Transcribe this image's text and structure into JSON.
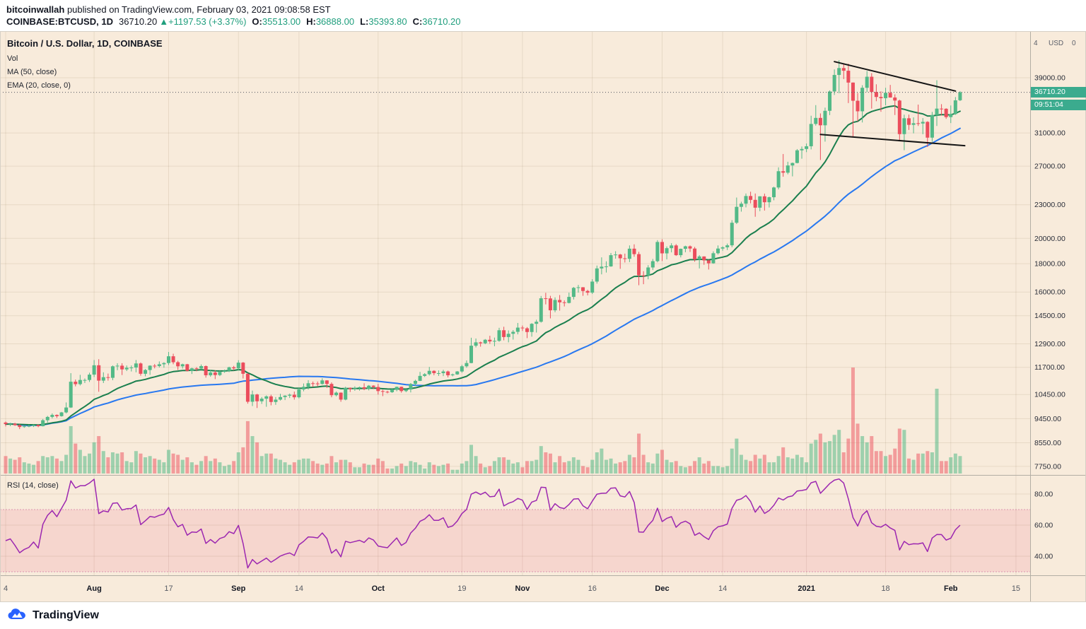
{
  "header": {
    "publisher": "bitcoinwallah",
    "published_text": " published on TradingView.com, February 03, 2021 09:08:58 EST",
    "symbol": "COINBASE:BTCUSD, 1D",
    "last": "36710.20",
    "arrow": "▲",
    "change": "+1197.53 (+3.37%)",
    "o_label": "O:",
    "open": "35513.00",
    "h_label": "H:",
    "high": "36888.00",
    "l_label": "L:",
    "low": "35393.80",
    "c_label": "C:",
    "close": "36710.20"
  },
  "legend": {
    "title": "Bitcoin / U.S. Dollar, 1D, COINBASE",
    "vol": "Vol",
    "ma": "MA (50, close)",
    "ema": "EMA (20, close, 0)",
    "rsi": "RSI (14, close)"
  },
  "price_axis": {
    "top_row": [
      "4",
      "USD",
      "0"
    ],
    "last_price_label": "36710.20",
    "countdown": "09:51:04"
  },
  "footer": {
    "brand": "TradingView"
  },
  "colors": {
    "bg": "#f8ebdb",
    "pos": "#1f9e7d",
    "up": "#53b987",
    "down": "#eb4d5c",
    "vol_up": "rgba(83,185,135,0.55)",
    "vol_down": "rgba(235,77,92,0.5)",
    "ema": "#1a7f4e",
    "ma": "#2878f0",
    "rsi": "#9c27b0",
    "rsi_band": "rgba(233,30,99,0.1)",
    "rsi_band_edge": "rgba(194,70,140,0.5)",
    "tag": "#3bab8e",
    "grid": "rgba(90,60,20,0.1)",
    "divider": "#b3aea4",
    "frame": "#d6d0c6",
    "trend": "#151515",
    "text_dark": "#131722",
    "text_soft": "#5a5e69"
  },
  "chart_data": {
    "type": "candlestick",
    "title": "Bitcoin / U.S. Dollar, 1D, COINBASE",
    "timeframe": "1D",
    "scale": "log",
    "indicators": [
      "Vol",
      "MA (50, close)",
      "EMA (20, close, 0)",
      "RSI (14, close)"
    ],
    "last_bar": {
      "open": 35513.0,
      "high": 36888.0,
      "low": 35393.8,
      "close": 36710.2,
      "change": "+1197.53 (+3.37%)"
    },
    "first_open": 9300,
    "price_ticks": [
      39000,
      31000,
      27000,
      23000,
      20000,
      18000,
      16000,
      14500,
      12900,
      11700,
      10450,
      9450,
      8550,
      7750
    ],
    "rsi_ticks": [
      80,
      60,
      40
    ],
    "rsi_band": [
      70,
      30
    ],
    "time_ticks": [
      {
        "label": "4",
        "day": 0,
        "bold": false
      },
      {
        "label": "Aug",
        "day": 19,
        "bold": true
      },
      {
        "label": "17",
        "day": 35,
        "bold": false
      },
      {
        "label": "Sep",
        "day": 50,
        "bold": true
      },
      {
        "label": "14",
        "day": 63,
        "bold": false
      },
      {
        "label": "Oct",
        "day": 80,
        "bold": true
      },
      {
        "label": "19",
        "day": 98,
        "bold": false
      },
      {
        "label": "Nov",
        "day": 111,
        "bold": true
      },
      {
        "label": "16",
        "day": 126,
        "bold": false
      },
      {
        "label": "Dec",
        "day": 141,
        "bold": true
      },
      {
        "label": "14",
        "day": 154,
        "bold": false
      },
      {
        "label": "2021",
        "day": 172,
        "bold": true
      },
      {
        "label": "18",
        "day": 189,
        "bold": false
      },
      {
        "label": "Feb",
        "day": 203,
        "bold": true
      },
      {
        "label": "15",
        "day": 217,
        "bold": false
      }
    ],
    "trendlines": [
      {
        "day1": 178,
        "price1": 41700,
        "day2": 204,
        "price2": 36900
      },
      {
        "day1": 175,
        "price1": 30800,
        "day2": 206,
        "price2": 29400
      }
    ],
    "candles_hlcv": [
      [
        9340,
        9150,
        9240,
        14
      ],
      [
        9290,
        9160,
        9255,
        12
      ],
      [
        9290,
        9170,
        9200,
        11
      ],
      [
        9230,
        9050,
        9130,
        13
      ],
      [
        9190,
        9100,
        9155,
        9
      ],
      [
        9220,
        9120,
        9170,
        8
      ],
      [
        9230,
        9130,
        9210,
        7
      ],
      [
        9220,
        9120,
        9160,
        10
      ],
      [
        9440,
        9150,
        9390,
        14
      ],
      [
        9560,
        9300,
        9520,
        13
      ],
      [
        9660,
        9460,
        9600,
        14
      ],
      [
        9620,
        9480,
        9550,
        12
      ],
      [
        9720,
        9530,
        9700,
        10
      ],
      [
        10110,
        9660,
        9900,
        15
      ],
      [
        11420,
        9880,
        11020,
        38
      ],
      [
        11120,
        10810,
        10910,
        24
      ],
      [
        11340,
        10850,
        11100,
        19
      ],
      [
        11170,
        10960,
        11100,
        14
      ],
      [
        11440,
        11010,
        11350,
        16
      ],
      [
        12060,
        11240,
        11800,
        25
      ],
      [
        12100,
        10570,
        11070,
        30
      ],
      [
        11460,
        10960,
        11230,
        18
      ],
      [
        11400,
        11070,
        11200,
        13
      ],
      [
        11790,
        11090,
        11750,
        17
      ],
      [
        11900,
        11560,
        11780,
        16
      ],
      [
        11900,
        11330,
        11600,
        17
      ],
      [
        11790,
        11520,
        11680,
        10
      ],
      [
        11790,
        11500,
        11690,
        9
      ],
      [
        12060,
        11460,
        11890,
        18
      ],
      [
        11940,
        11300,
        11390,
        16
      ],
      [
        11620,
        11270,
        11570,
        13
      ],
      [
        11800,
        11340,
        11780,
        14
      ],
      [
        11860,
        11650,
        11760,
        12
      ],
      [
        11990,
        11690,
        11850,
        11
      ],
      [
        11950,
        11680,
        11910,
        9
      ],
      [
        12470,
        11810,
        12250,
        19
      ],
      [
        12380,
        11850,
        11950,
        16
      ],
      [
        12020,
        11570,
        11750,
        15
      ],
      [
        11880,
        11640,
        11850,
        11
      ],
      [
        11870,
        11500,
        11530,
        13
      ],
      [
        11680,
        11380,
        11650,
        9
      ],
      [
        11710,
        11510,
        11640,
        7
      ],
      [
        11840,
        11590,
        11760,
        10
      ],
      [
        11790,
        11210,
        11320,
        14
      ],
      [
        11570,
        11250,
        11450,
        10
      ],
      [
        11560,
        11140,
        11330,
        12
      ],
      [
        11540,
        11280,
        11480,
        9
      ],
      [
        11590,
        11440,
        11530,
        6
      ],
      [
        11730,
        11470,
        11700,
        7
      ],
      [
        11770,
        11550,
        11650,
        10
      ],
      [
        12050,
        11540,
        11930,
        17
      ],
      [
        11960,
        11170,
        11390,
        21
      ],
      [
        11430,
        10060,
        10140,
        42
      ],
      [
        10620,
        9960,
        10450,
        30
      ],
      [
        10480,
        9880,
        10160,
        25
      ],
      [
        10340,
        10050,
        10270,
        14
      ],
      [
        10410,
        9930,
        10370,
        16
      ],
      [
        10440,
        9990,
        10130,
        16
      ],
      [
        10340,
        10010,
        10230,
        12
      ],
      [
        10480,
        10190,
        10340,
        11
      ],
      [
        10420,
        10210,
        10400,
        9
      ],
      [
        10490,
        10300,
        10440,
        7
      ],
      [
        10580,
        10230,
        10330,
        9
      ],
      [
        10740,
        10280,
        10670,
        11
      ],
      [
        10940,
        10590,
        10790,
        12
      ],
      [
        11090,
        10670,
        10950,
        12
      ],
      [
        11030,
        10780,
        10940,
        10
      ],
      [
        11030,
        10810,
        10920,
        8
      ],
      [
        11180,
        10890,
        11080,
        7
      ],
      [
        11090,
        10740,
        10920,
        8
      ],
      [
        10990,
        10330,
        10420,
        14
      ],
      [
        10580,
        10370,
        10530,
        9
      ],
      [
        10540,
        10140,
        10230,
        11
      ],
      [
        10790,
        10200,
        10740,
        11
      ],
      [
        10760,
        10560,
        10690,
        9
      ],
      [
        10810,
        10610,
        10730,
        5
      ],
      [
        10800,
        10620,
        10770,
        5
      ],
      [
        10950,
        10640,
        10700,
        8
      ],
      [
        10870,
        10630,
        10840,
        7
      ],
      [
        10860,
        10690,
        10780,
        7
      ],
      [
        10920,
        10450,
        10600,
        12
      ],
      [
        10660,
        10380,
        10570,
        10
      ],
      [
        10610,
        10500,
        10550,
        4
      ],
      [
        10700,
        10520,
        10670,
        4
      ],
      [
        10800,
        10590,
        10790,
        6
      ],
      [
        10800,
        10530,
        10600,
        8
      ],
      [
        10690,
        10550,
        10670,
        6
      ],
      [
        10960,
        10540,
        10920,
        10
      ],
      [
        11110,
        10830,
        11060,
        9
      ],
      [
        11480,
        11050,
        11290,
        7
      ],
      [
        11420,
        11240,
        11370,
        4
      ],
      [
        11720,
        11310,
        11530,
        9
      ],
      [
        11560,
        11320,
        11420,
        7
      ],
      [
        11550,
        11290,
        11420,
        6
      ],
      [
        11580,
        11280,
        11500,
        7
      ],
      [
        11540,
        11220,
        11320,
        8
      ],
      [
        11400,
        11270,
        11360,
        3
      ],
      [
        11520,
        11340,
        11500,
        3
      ],
      [
        11820,
        11440,
        11750,
        8
      ],
      [
        12040,
        11680,
        11910,
        10
      ],
      [
        13230,
        11900,
        12800,
        23
      ],
      [
        13190,
        12710,
        12980,
        14
      ],
      [
        13020,
        12750,
        12930,
        8
      ],
      [
        13160,
        12880,
        13120,
        5
      ],
      [
        13340,
        12900,
        13030,
        6
      ],
      [
        13240,
        12770,
        13060,
        10
      ],
      [
        13790,
        13010,
        13650,
        13
      ],
      [
        13850,
        13090,
        13270,
        13
      ],
      [
        13640,
        12980,
        13450,
        11
      ],
      [
        13660,
        13130,
        13560,
        8
      ],
      [
        14070,
        13420,
        13800,
        9
      ],
      [
        13920,
        13610,
        13760,
        5
      ],
      [
        13830,
        13210,
        13550,
        10
      ],
      [
        14060,
        13290,
        14020,
        10
      ],
      [
        14260,
        13520,
        14140,
        11
      ],
      [
        15740,
        14090,
        15590,
        22
      ],
      [
        15950,
        15200,
        15580,
        17
      ],
      [
        15750,
        14340,
        14830,
        16
      ],
      [
        15650,
        14710,
        15480,
        9
      ],
      [
        15800,
        14810,
        15330,
        14
      ],
      [
        15460,
        15070,
        15290,
        9
      ],
      [
        15960,
        15260,
        15680,
        10
      ],
      [
        16340,
        15510,
        16280,
        13
      ],
      [
        16480,
        15960,
        16320,
        11
      ],
      [
        16330,
        15750,
        16070,
        6
      ],
      [
        16150,
        15780,
        15960,
        5
      ],
      [
        16880,
        15870,
        16710,
        11
      ],
      [
        17860,
        16570,
        17650,
        17
      ],
      [
        18480,
        17220,
        17780,
        20
      ],
      [
        18180,
        17350,
        17800,
        11
      ],
      [
        18820,
        17770,
        18650,
        12
      ],
      [
        18960,
        18380,
        18700,
        8
      ],
      [
        18750,
        17620,
        18410,
        9
      ],
      [
        18770,
        18090,
        18370,
        10
      ],
      [
        19420,
        18120,
        19160,
        15
      ],
      [
        19510,
        18530,
        18730,
        13
      ],
      [
        18910,
        16460,
        17150,
        32
      ],
      [
        17450,
        16530,
        17140,
        15
      ],
      [
        17890,
        16870,
        17720,
        9
      ],
      [
        18360,
        17530,
        18190,
        8
      ],
      [
        19850,
        18100,
        19700,
        16
      ],
      [
        19920,
        18200,
        18790,
        19
      ],
      [
        19340,
        18330,
        19200,
        11
      ],
      [
        19600,
        18870,
        19420,
        9
      ],
      [
        19530,
        18590,
        18650,
        10
      ],
      [
        19170,
        18480,
        19150,
        6
      ],
      [
        19400,
        18880,
        19350,
        5
      ],
      [
        19420,
        18900,
        19170,
        6
      ],
      [
        19300,
        18150,
        18320,
        10
      ],
      [
        18650,
        17650,
        18550,
        13
      ],
      [
        18560,
        17920,
        18250,
        8
      ],
      [
        18300,
        17570,
        18030,
        10
      ],
      [
        18950,
        18000,
        18800,
        6
      ],
      [
        19420,
        18700,
        19170,
        6
      ],
      [
        19350,
        19000,
        19270,
        5
      ],
      [
        19570,
        19050,
        19430,
        6
      ],
      [
        21570,
        19280,
        21340,
        20
      ],
      [
        23700,
        21230,
        22800,
        28
      ],
      [
        23290,
        22350,
        23100,
        15
      ],
      [
        24100,
        22750,
        23850,
        11
      ],
      [
        24280,
        23130,
        23470,
        10
      ],
      [
        24100,
        21880,
        22720,
        15
      ],
      [
        23830,
        22390,
        23820,
        12
      ],
      [
        24090,
        22450,
        23240,
        15
      ],
      [
        23790,
        22740,
        23730,
        9
      ],
      [
        24790,
        23430,
        24710,
        9
      ],
      [
        26870,
        24520,
        26440,
        14
      ],
      [
        28400,
        25840,
        26280,
        21
      ],
      [
        27500,
        26100,
        27080,
        13
      ],
      [
        27410,
        25880,
        27360,
        12
      ],
      [
        28990,
        27320,
        28840,
        15
      ],
      [
        29300,
        27850,
        29000,
        13
      ],
      [
        29670,
        28620,
        29330,
        9
      ],
      [
        33300,
        28950,
        32180,
        24
      ],
      [
        34800,
        31960,
        33000,
        27
      ],
      [
        33620,
        27700,
        32000,
        32
      ],
      [
        34440,
        29900,
        33990,
        25
      ],
      [
        37000,
        33390,
        36830,
        26
      ],
      [
        40370,
        36300,
        39450,
        31
      ],
      [
        41950,
        36560,
        40600,
        35
      ],
      [
        41380,
        38780,
        40150,
        17
      ],
      [
        41350,
        35100,
        38220,
        28
      ],
      [
        38250,
        30420,
        35440,
        85
      ],
      [
        36600,
        32530,
        33920,
        40
      ],
      [
        37800,
        32380,
        37400,
        30
      ],
      [
        40100,
        36730,
        39160,
        25
      ],
      [
        39750,
        34300,
        36750,
        30
      ],
      [
        37950,
        35370,
        36000,
        18
      ],
      [
        36850,
        33850,
        35820,
        18
      ],
      [
        37400,
        34780,
        36630,
        14
      ],
      [
        37850,
        35900,
        35920,
        15
      ],
      [
        36400,
        33400,
        35470,
        20
      ],
      [
        35600,
        30050,
        30850,
        36
      ],
      [
        33450,
        28850,
        32950,
        35
      ],
      [
        33460,
        31390,
        32060,
        12
      ],
      [
        33070,
        30950,
        32280,
        11
      ],
      [
        34880,
        31910,
        32240,
        16
      ],
      [
        32970,
        30840,
        32460,
        16
      ],
      [
        32550,
        29240,
        30400,
        18
      ],
      [
        33830,
        29880,
        33400,
        17
      ],
      [
        38600,
        31910,
        34300,
        68
      ],
      [
        34940,
        33330,
        34280,
        10
      ],
      [
        34350,
        32870,
        33110,
        10
      ],
      [
        34750,
        32300,
        33530,
        13
      ],
      [
        35990,
        33420,
        35500,
        16
      ],
      [
        36888,
        35394,
        36710,
        14
      ]
    ]
  }
}
